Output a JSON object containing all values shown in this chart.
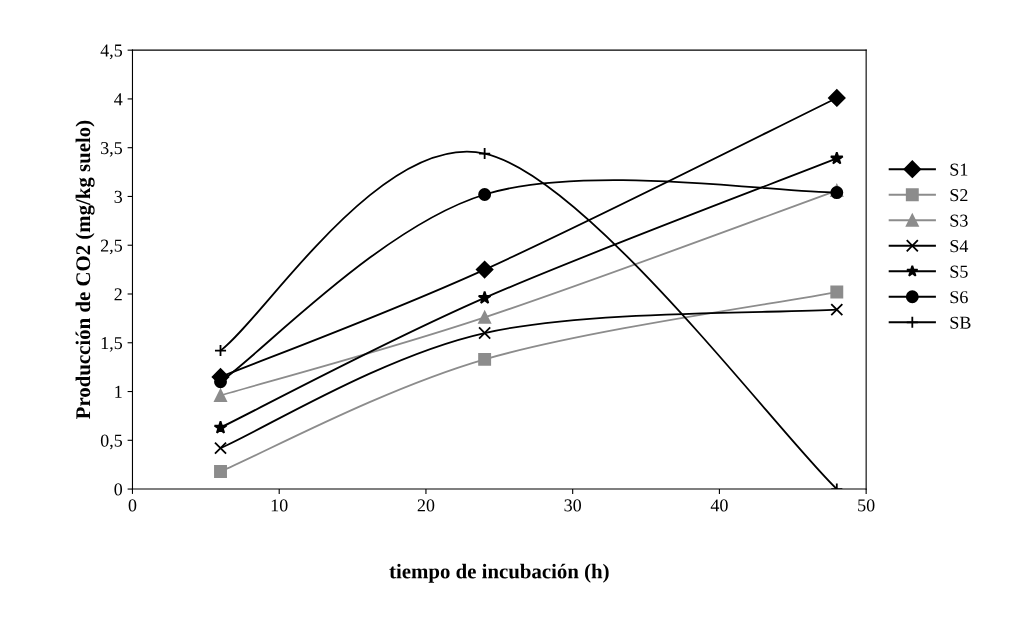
{
  "chart_data": {
    "type": "line",
    "xlabel": "tiempo de incubación (h)",
    "ylabel": "Producción de CO2 (mg/kg suelo)",
    "x": [
      6,
      24,
      48
    ],
    "series": [
      {
        "name": "S1",
        "color": "#000000",
        "marker": "diamond",
        "values": [
          1.15,
          2.25,
          4.01
        ]
      },
      {
        "name": "S2",
        "color": "#8c8c8c",
        "marker": "square",
        "values": [
          0.18,
          1.33,
          2.02
        ]
      },
      {
        "name": "S3",
        "color": "#8c8c8c",
        "marker": "triangle",
        "values": [
          0.96,
          1.76,
          3.06
        ]
      },
      {
        "name": "S4",
        "color": "#000000",
        "marker": "cross",
        "values": [
          0.42,
          1.6,
          1.84
        ]
      },
      {
        "name": "S5",
        "color": "#000000",
        "marker": "star",
        "values": [
          0.63,
          1.96,
          3.39
        ]
      },
      {
        "name": "S6",
        "color": "#000000",
        "marker": "circle",
        "values": [
          1.1,
          3.02,
          3.04
        ]
      },
      {
        "name": "SB",
        "color": "#000000",
        "marker": "plus",
        "values": [
          1.42,
          3.44,
          0
        ]
      }
    ],
    "xlim": [
      0,
      50
    ],
    "xticks": [
      0,
      10,
      20,
      30,
      40,
      50
    ],
    "ylim": [
      0,
      4.5
    ],
    "yticks": [
      0,
      {
        "value": 0.5,
        "label": "0,5"
      },
      1,
      {
        "value": 1.5,
        "label": "1,5"
      },
      2,
      {
        "value": 2.5,
        "label": "2,5"
      },
      3,
      {
        "value": 3.5,
        "label": "3,5"
      },
      4,
      {
        "value": 4.5,
        "label": "4,5"
      }
    ],
    "grid": false,
    "legend": "right",
    "line_style": "solid"
  }
}
